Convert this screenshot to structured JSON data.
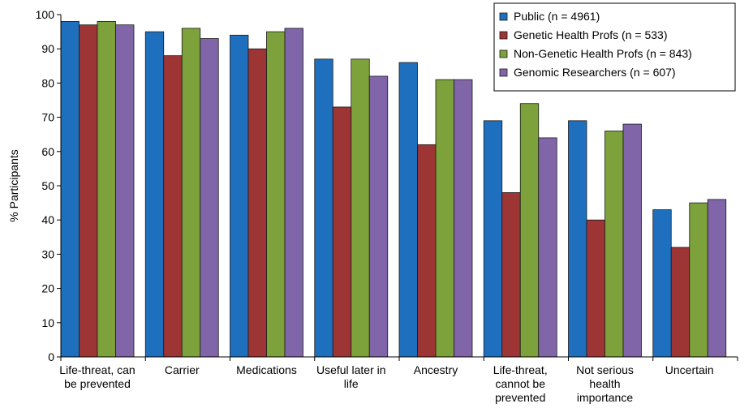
{
  "chart_data": {
    "type": "bar",
    "title": "",
    "xlabel": "",
    "ylabel": "% Participants",
    "ylim": [
      0,
      100
    ],
    "yticks": [
      0,
      10,
      20,
      30,
      40,
      50,
      60,
      70,
      80,
      90,
      100
    ],
    "grid": false,
    "legend_position": "top-right",
    "categories": [
      [
        "Life-threat, can",
        "be prevented"
      ],
      [
        "Carrier"
      ],
      [
        "Medications"
      ],
      [
        "Useful later in",
        "life"
      ],
      [
        "Ancestry"
      ],
      [
        "Life-threat,",
        "cannot be",
        "prevented"
      ],
      [
        "Not serious",
        "health",
        "importance"
      ],
      [
        "Uncertain"
      ]
    ],
    "series": [
      {
        "name": "Public (n = 4961)",
        "color": "#1f6fbf",
        "values": [
          98,
          95,
          94,
          87,
          86,
          69,
          69,
          43
        ]
      },
      {
        "name": "Genetic Health Profs (n = 533)",
        "color": "#9e3535",
        "values": [
          97,
          88,
          90,
          73,
          62,
          48,
          40,
          32
        ]
      },
      {
        "name": "Non-Genetic Health Profs (n = 843)",
        "color": "#7ea23b",
        "values": [
          98,
          96,
          95,
          87,
          81,
          74,
          66,
          45
        ]
      },
      {
        "name": "Genomic Researchers (n = 607)",
        "color": "#8066a8",
        "values": [
          97,
          93,
          96,
          82,
          81,
          64,
          68,
          46
        ]
      }
    ]
  }
}
